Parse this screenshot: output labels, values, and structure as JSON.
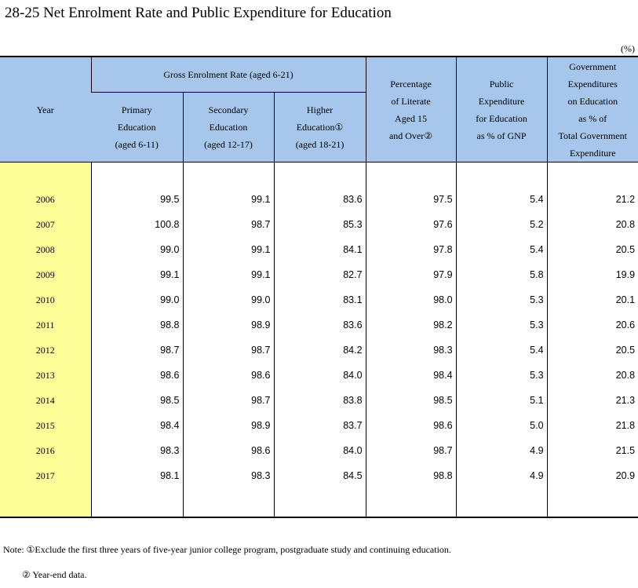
{
  "title": "28-25  Net Enrolment Rate and Public Expenditure for Education",
  "unit": "(%)",
  "headers": {
    "year": "Year",
    "gross_group": "Gross Enrolment Rate (aged 6-21)",
    "primary": [
      "Primary",
      "Education",
      "(aged 6-11)"
    ],
    "secondary": [
      "Secondary",
      "Education",
      "(aged 12-17)"
    ],
    "higher": [
      "Higher",
      "Education①",
      "(aged 18-21)"
    ],
    "literate": [
      "Percentage",
      "of Literate",
      "Aged 15",
      "and Over②"
    ],
    "public_exp": [
      "Public",
      "Expenditure",
      "for Education",
      "as % of GNP"
    ],
    "gov_exp": [
      "Government",
      "Expenditures",
      "on Education",
      "as % of",
      "Total Government",
      "Expenditure"
    ]
  },
  "rows": [
    {
      "year": "2006",
      "primary": "99.5",
      "secondary": "99.1",
      "higher": "83.6",
      "literate": "97.5",
      "gnp": "5.4",
      "gov": "21.2"
    },
    {
      "year": "2007",
      "primary": "100.8",
      "secondary": "98.7",
      "higher": "85.3",
      "literate": "97.6",
      "gnp": "5.2",
      "gov": "20.8"
    },
    {
      "year": "2008",
      "primary": "99.0",
      "secondary": "99.1",
      "higher": "84.1",
      "literate": "97.8",
      "gnp": "5.4",
      "gov": "20.5"
    },
    {
      "year": "2009",
      "primary": "99.1",
      "secondary": "99.1",
      "higher": "82.7",
      "literate": "97.9",
      "gnp": "5.8",
      "gov": "19.9"
    },
    {
      "year": "2010",
      "primary": "99.0",
      "secondary": "99.0",
      "higher": "83.1",
      "literate": "98.0",
      "gnp": "5.3",
      "gov": "20.1"
    },
    {
      "year": "2011",
      "primary": "98.8",
      "secondary": "98.9",
      "higher": "83.6",
      "literate": "98.2",
      "gnp": "5.3",
      "gov": "20.6"
    },
    {
      "year": "2012",
      "primary": "98.7",
      "secondary": "98.7",
      "higher": "84.2",
      "literate": "98.3",
      "gnp": "5.4",
      "gov": "20.5"
    },
    {
      "year": "2013",
      "primary": "98.6",
      "secondary": "98.6",
      "higher": "84.0",
      "literate": "98.4",
      "gnp": "5.3",
      "gov": "20.8"
    },
    {
      "year": "2014",
      "primary": "98.5",
      "secondary": "98.7",
      "higher": "83.8",
      "literate": "98.5",
      "gnp": "5.1",
      "gov": "21.3"
    },
    {
      "year": "2015",
      "primary": "98.4",
      "secondary": "98.9",
      "higher": "83.7",
      "literate": "98.6",
      "gnp": "5.0",
      "gov": "21.8"
    },
    {
      "year": "2016",
      "primary": "98.3",
      "secondary": "98.6",
      "higher": "84.0",
      "literate": "98.7",
      "gnp": "4.9",
      "gov": "21.5"
    },
    {
      "year": "2017",
      "primary": "98.1",
      "secondary": "98.3",
      "higher": "84.5",
      "literate": "98.8",
      "gnp": "4.9",
      "gov": "20.9"
    }
  ],
  "notes": {
    "note1": "Note: ①Exclude the first three years of five-year junior college program, postgraduate study and continuing education.",
    "note2": "②  Year-end data."
  }
}
